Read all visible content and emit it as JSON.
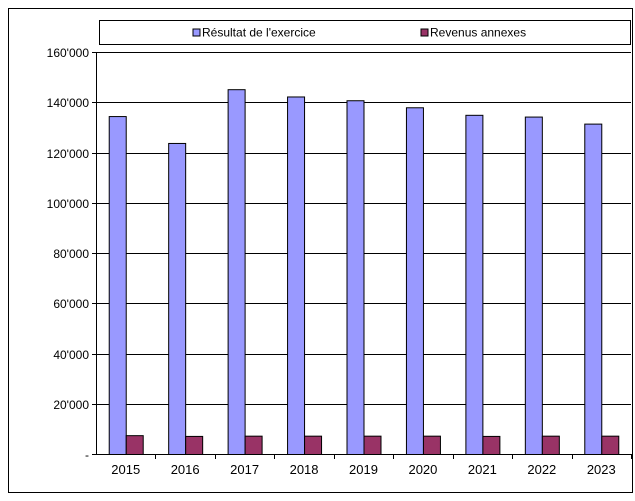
{
  "chart_data": {
    "type": "bar",
    "categories": [
      "2015",
      "2016",
      "2017",
      "2018",
      "2019",
      "2020",
      "2021",
      "2022",
      "2023"
    ],
    "series": [
      {
        "name": "Résultat de l'exercice",
        "color": "#9999ff",
        "values": [
          134500,
          123800,
          145200,
          142300,
          140800,
          138000,
          135000,
          134300,
          131500
        ]
      },
      {
        "name": "Revenus annexes",
        "color": "#993366",
        "values": [
          7500,
          7200,
          7300,
          7300,
          7300,
          7300,
          7200,
          7300,
          7300
        ]
      }
    ],
    "y_ticks": [
      "-",
      "20'000",
      "40'000",
      "60'000",
      "80'000",
      "100'000",
      "120'000",
      "140'000",
      "160'000"
    ],
    "ylim": [
      0,
      160000
    ],
    "grid": true,
    "legend_position": "top"
  }
}
